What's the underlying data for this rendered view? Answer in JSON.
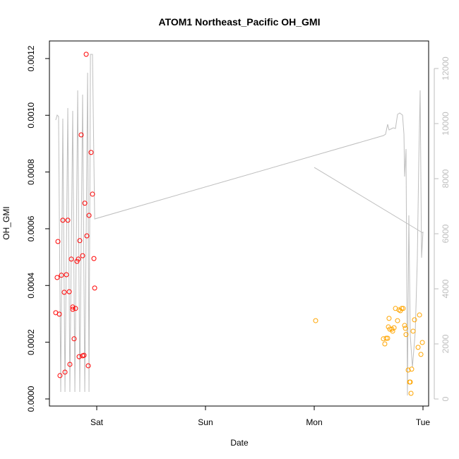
{
  "chart_data": {
    "type": "scatter",
    "title": "ATOM1 Northeast_Pacific OH_GMI",
    "x_label": "Date",
    "y_label": "OH_GMI",
    "xlim": [
      -0.435,
      3.052
    ],
    "xticks": [
      {
        "value": 0,
        "label": "Sat"
      },
      {
        "value": 1,
        "label": "Sun"
      },
      {
        "value": 2,
        "label": "Mon"
      },
      {
        "value": 3,
        "label": "Tue"
      }
    ],
    "ylim": [
      -2.5e-05,
      0.001262
    ],
    "yticks": [
      {
        "value": 0,
        "label": "0.0000"
      },
      {
        "value": 0.0002,
        "label": "0.0002"
      },
      {
        "value": 0.0004,
        "label": "0.0004"
      },
      {
        "value": 0.0006,
        "label": "0.0006"
      },
      {
        "value": 0.0008,
        "label": "0.0008"
      },
      {
        "value": 0.001,
        "label": "0.0010"
      },
      {
        "value": 0.0012,
        "label": "0.0012"
      }
    ],
    "y2lim": [
      -256,
      13000
    ],
    "y2ticks": [
      0,
      2000,
      4000,
      6000,
      8000,
      10000,
      12000
    ],
    "y2_color": "#bebebe",
    "series": [
      {
        "type": "line",
        "axis": "y2",
        "color": "#bebebe",
        "x": [
          -0.377,
          -0.364,
          -0.351,
          -0.331,
          -0.312,
          -0.292,
          -0.266,
          -0.247,
          -0.221,
          -0.201,
          -0.175,
          -0.156,
          -0.13,
          -0.11,
          -0.084,
          -0.071,
          -0.058,
          -0.039,
          -0.019,
          2.636,
          2.656,
          2.675,
          2.688,
          2.701,
          2.727,
          2.747,
          2.766,
          2.786,
          2.812,
          2.825,
          2.831,
          2.844,
          2.857,
          2.87,
          2.883,
          2.903,
          2.929,
          2.948,
          2.961,
          2.974,
          2.987,
          3.0,
          null,
          2.0,
          3.0
        ],
        "values": [
          10128,
          10308,
          10256,
          256,
          10179,
          256,
          10564,
          256,
          10462,
          256,
          11205,
          256,
          11051,
          256,
          11846,
          256,
          12513,
          12513,
          6538,
          9564,
          9615,
          9974,
          9769,
          9795,
          9846,
          9821,
          10333,
          10385,
          10308,
          9615,
          8077,
          9077,
          128,
          6667,
          2308,
          1154,
          2436,
          5077,
          8538,
          11205,
          5128,
          6077,
          null,
          8410,
          6026
        ]
      },
      {
        "type": "scatter",
        "color": "#ff0000",
        "x": [
          -0.097,
          -0.143,
          -0.052,
          -0.039,
          -0.11,
          -0.071,
          -0.312,
          -0.266,
          -0.091,
          -0.357,
          -0.156,
          -0.13,
          -0.234,
          -0.169,
          -0.182,
          -0.026,
          -0.364,
          -0.325,
          -0.279,
          -0.019,
          -0.299,
          -0.253,
          -0.221,
          -0.221,
          -0.195,
          -0.377,
          -0.344,
          -0.208,
          -0.162,
          -0.13,
          -0.117,
          -0.247,
          -0.078,
          -0.338,
          -0.292
        ],
        "values": [
          0.001215,
          0.000931,
          0.000869,
          0.000722,
          0.00069,
          0.000647,
          0.00063,
          0.00063,
          0.000575,
          0.000555,
          0.000558,
          0.000505,
          0.000493,
          0.000493,
          0.000485,
          0.000495,
          0.000428,
          0.000436,
          0.000438,
          0.000391,
          0.000376,
          0.000378,
          0.000324,
          0.000316,
          0.000319,
          0.000304,
          0.000299,
          0.000212,
          0.000149,
          0.000152,
          0.000154,
          0.000122,
          0.000117,
          8.22e-05,
          9.46e-05
        ]
      },
      {
        "type": "scatter",
        "color": "#ffa500",
        "x": [
          2.013,
          2.636,
          2.649,
          2.662,
          2.675,
          2.688,
          2.682,
          2.695,
          2.714,
          2.721,
          2.734,
          2.747,
          2.766,
          2.779,
          2.792,
          2.805,
          2.818,
          2.831,
          2.838,
          2.844,
          2.864,
          2.877,
          2.883,
          2.89,
          2.896,
          2.909,
          2.922,
          2.955,
          2.968,
          2.981,
          2.994
        ],
        "values": [
          0.000276,
          0.000212,
          0.000194,
          0.000214,
          0.000214,
          0.000284,
          0.000254,
          0.000246,
          0.000246,
          0.000239,
          0.000251,
          0.000319,
          0.000276,
          0.000314,
          0.000311,
          0.000319,
          0.000319,
          0.000259,
          0.000249,
          0.000227,
          0.000102,
          5.97e-05,
          5.97e-05,
          1.99e-05,
          0.000105,
          0.000239,
          0.000279,
          0.000182,
          0.000296,
          0.000157,
          0.000199
        ]
      }
    ]
  }
}
